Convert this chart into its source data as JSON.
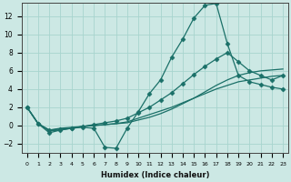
{
  "xlabel": "Humidex (Indice chaleur)",
  "bg_color": "#cce8e4",
  "line_color": "#1a7068",
  "grid_color": "#a8d4ce",
  "xlim": [
    -0.5,
    23.5
  ],
  "ylim": [
    -3,
    13.5
  ],
  "xticks": [
    0,
    1,
    2,
    3,
    4,
    5,
    6,
    7,
    8,
    9,
    10,
    11,
    12,
    13,
    14,
    15,
    16,
    17,
    18,
    19,
    20,
    21,
    22,
    23
  ],
  "yticks": [
    -2,
    0,
    2,
    4,
    6,
    8,
    10,
    12
  ],
  "curves": [
    {
      "x": [
        0,
        1,
        2,
        3,
        4,
        5,
        6,
        7,
        8,
        9,
        10,
        11,
        12,
        13,
        14,
        15,
        16,
        17,
        18,
        19,
        20,
        21,
        22,
        23
      ],
      "y": [
        2.0,
        0.2,
        -0.5,
        -0.3,
        -0.2,
        -0.1,
        0.0,
        0.1,
        0.2,
        0.4,
        0.8,
        1.2,
        1.6,
        2.0,
        2.5,
        3.0,
        3.5,
        4.0,
        4.4,
        4.8,
        5.0,
        5.2,
        5.4,
        5.5
      ],
      "markers": false
    },
    {
      "x": [
        0,
        1,
        2,
        3,
        4,
        5,
        6,
        7,
        8,
        9,
        10,
        11,
        12,
        13,
        14,
        15,
        16,
        17,
        18,
        19,
        20,
        21,
        22,
        23
      ],
      "y": [
        2.0,
        0.2,
        -0.5,
        -0.4,
        -0.3,
        -0.1,
        0.1,
        0.3,
        0.5,
        0.8,
        1.4,
        2.0,
        2.8,
        3.6,
        4.6,
        5.6,
        6.5,
        7.3,
        8.0,
        7.0,
        6.0,
        5.5,
        5.0,
        5.5
      ],
      "markers": true
    },
    {
      "x": [
        0,
        1,
        2,
        3,
        4,
        5,
        6,
        7,
        8,
        9,
        10,
        11,
        12,
        13,
        14,
        15,
        16,
        17,
        18,
        19,
        20,
        21,
        22,
        23
      ],
      "y": [
        2.0,
        0.2,
        -0.6,
        -0.5,
        -0.3,
        -0.1,
        0.0,
        0.1,
        0.2,
        0.3,
        0.6,
        0.9,
        1.3,
        1.8,
        2.4,
        3.0,
        3.7,
        4.4,
        5.0,
        5.5,
        5.8,
        6.0,
        6.1,
        6.2
      ],
      "markers": false
    },
    {
      "x": [
        0,
        1,
        2,
        3,
        4,
        5,
        6,
        7,
        8,
        9,
        10,
        11,
        12,
        13,
        14,
        15,
        16,
        17,
        18,
        19,
        20,
        21,
        22,
        23
      ],
      "y": [
        2.0,
        0.2,
        -0.8,
        -0.5,
        -0.3,
        -0.2,
        -0.3,
        -2.4,
        -2.5,
        -0.3,
        1.5,
        3.5,
        5.0,
        7.5,
        9.5,
        11.8,
        13.2,
        13.4,
        9.0,
        5.5,
        4.8,
        4.5,
        4.2,
        4.0
      ],
      "markers": true
    }
  ]
}
